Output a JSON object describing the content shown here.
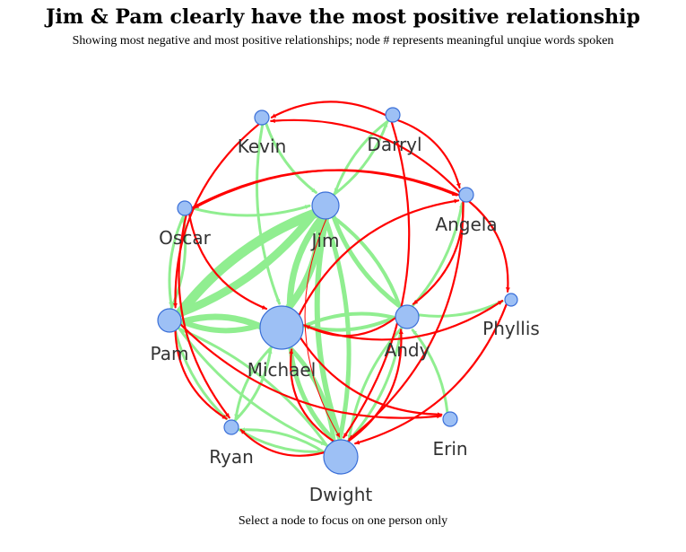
{
  "header": {
    "title": "Jim & Pam clearly have the most positive relationship",
    "subtitle": "Showing most negative and most positive relationships; node # represents meaningful unqiue words spoken"
  },
  "footer": {
    "instruction": "Select a node to focus on one person only"
  },
  "colors": {
    "positive": "#90ee90",
    "negative": "#ff0000",
    "node_fill": "#9dc0f5",
    "node_stroke": "#3a6fd8"
  },
  "nodes": [
    {
      "id": "Kevin",
      "label": "Kevin"
    },
    {
      "id": "Darryl",
      "label": "Darryl"
    },
    {
      "id": "Angela",
      "label": "Angela"
    },
    {
      "id": "Oscar",
      "label": "Oscar"
    },
    {
      "id": "Jim",
      "label": "Jim"
    },
    {
      "id": "Phyllis",
      "label": "Phyllis"
    },
    {
      "id": "Pam",
      "label": "Pam"
    },
    {
      "id": "Michael",
      "label": "Michael"
    },
    {
      "id": "Andy",
      "label": "Andy"
    },
    {
      "id": "Erin",
      "label": "Erin"
    },
    {
      "id": "Ryan",
      "label": "Ryan"
    },
    {
      "id": "Dwight",
      "label": "Dwight"
    }
  ],
  "edges": [
    {
      "source": "Jim",
      "target": "Pam",
      "sentiment": "positive"
    },
    {
      "source": "Pam",
      "target": "Jim",
      "sentiment": "positive"
    },
    {
      "source": "Michael",
      "target": "Jim",
      "sentiment": "positive"
    },
    {
      "source": "Jim",
      "target": "Michael",
      "sentiment": "positive"
    },
    {
      "source": "Michael",
      "target": "Pam",
      "sentiment": "positive"
    },
    {
      "source": "Pam",
      "target": "Michael",
      "sentiment": "positive"
    },
    {
      "source": "Jim",
      "target": "Dwight",
      "sentiment": "positive"
    },
    {
      "source": "Dwight",
      "target": "Jim",
      "sentiment": "positive"
    },
    {
      "source": "Michael",
      "target": "Dwight",
      "sentiment": "positive"
    },
    {
      "source": "Dwight",
      "target": "Michael",
      "sentiment": "positive"
    },
    {
      "source": "Jim",
      "target": "Andy",
      "sentiment": "positive"
    },
    {
      "source": "Andy",
      "target": "Jim",
      "sentiment": "positive"
    },
    {
      "source": "Michael",
      "target": "Andy",
      "sentiment": "positive"
    },
    {
      "source": "Andy",
      "target": "Michael",
      "sentiment": "positive"
    },
    {
      "source": "Oscar",
      "target": "Pam",
      "sentiment": "positive"
    },
    {
      "source": "Pam",
      "target": "Oscar",
      "sentiment": "positive"
    },
    {
      "source": "Oscar",
      "target": "Jim",
      "sentiment": "positive"
    },
    {
      "source": "Kevin",
      "target": "Jim",
      "sentiment": "positive"
    },
    {
      "source": "Kevin",
      "target": "Michael",
      "sentiment": "positive"
    },
    {
      "source": "Darryl",
      "target": "Jim",
      "sentiment": "positive"
    },
    {
      "source": "Jim",
      "target": "Darryl",
      "sentiment": "positive"
    },
    {
      "source": "Pam",
      "target": "Ryan",
      "sentiment": "positive"
    },
    {
      "source": "Ryan",
      "target": "Michael",
      "sentiment": "positive"
    },
    {
      "source": "Michael",
      "target": "Ryan",
      "sentiment": "positive"
    },
    {
      "source": "Pam",
      "target": "Dwight",
      "sentiment": "positive"
    },
    {
      "source": "Dwight",
      "target": "Pam",
      "sentiment": "positive"
    },
    {
      "source": "Erin",
      "target": "Andy",
      "sentiment": "positive"
    },
    {
      "source": "Andy",
      "target": "Angela",
      "sentiment": "positive"
    },
    {
      "source": "Andy",
      "target": "Phyllis",
      "sentiment": "positive"
    },
    {
      "source": "Andy",
      "target": "Dwight",
      "sentiment": "positive"
    },
    {
      "source": "Dwight",
      "target": "Andy",
      "sentiment": "positive"
    },
    {
      "source": "Ryan",
      "target": "Dwight",
      "sentiment": "positive"
    },
    {
      "source": "Dwight",
      "target": "Ryan",
      "sentiment": "positive"
    },
    {
      "source": "Darryl",
      "target": "Kevin",
      "sentiment": "negative"
    },
    {
      "source": "Angela",
      "target": "Kevin",
      "sentiment": "negative"
    },
    {
      "source": "Darryl",
      "target": "Angela",
      "sentiment": "negative"
    },
    {
      "source": "Angela",
      "target": "Oscar",
      "sentiment": "negative"
    },
    {
      "source": "Oscar",
      "target": "Angela",
      "sentiment": "negative"
    },
    {
      "source": "Kevin",
      "target": "Pam",
      "sentiment": "negative"
    },
    {
      "source": "Oscar",
      "target": "Michael",
      "sentiment": "negative"
    },
    {
      "source": "Angela",
      "target": "Phyllis",
      "sentiment": "negative"
    },
    {
      "source": "Michael",
      "target": "Angela",
      "sentiment": "negative"
    },
    {
      "source": "Angela",
      "target": "Andy",
      "sentiment": "negative"
    },
    {
      "source": "Michael",
      "target": "Phyllis",
      "sentiment": "negative"
    },
    {
      "source": "Andy",
      "target": "Michael",
      "sentiment": "negative"
    },
    {
      "source": "Michael",
      "target": "Erin",
      "sentiment": "negative"
    },
    {
      "source": "Pam",
      "target": "Ryan",
      "sentiment": "negative"
    },
    {
      "source": "Oscar",
      "target": "Ryan",
      "sentiment": "negative"
    },
    {
      "source": "Dwight",
      "target": "Ryan",
      "sentiment": "negative"
    },
    {
      "source": "Pam",
      "target": "Erin",
      "sentiment": "negative"
    },
    {
      "source": "Darryl",
      "target": "Dwight",
      "sentiment": "negative"
    },
    {
      "source": "Dwight",
      "target": "Andy",
      "sentiment": "negative"
    },
    {
      "source": "Phyllis",
      "target": "Dwight",
      "sentiment": "negative"
    },
    {
      "source": "Dwight",
      "target": "Michael",
      "sentiment": "negative"
    },
    {
      "source": "Jim",
      "target": "Dwight",
      "sentiment": "negative"
    },
    {
      "source": "Angela",
      "target": "Dwight",
      "sentiment": "negative"
    }
  ]
}
